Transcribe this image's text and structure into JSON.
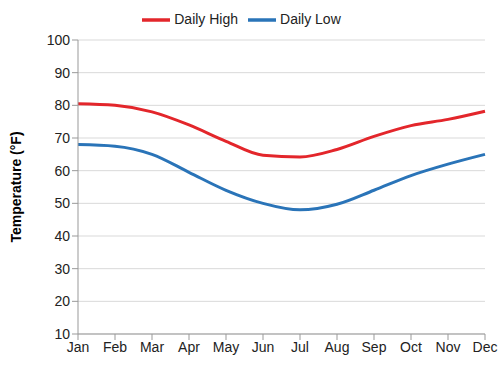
{
  "chart_data": {
    "type": "line",
    "y_label": "Temperature (°F)",
    "categories": [
      "Jan",
      "Feb",
      "Mar",
      "Apr",
      "May",
      "Jun",
      "Jul",
      "Aug",
      "Sep",
      "Oct",
      "Nov",
      "Dec"
    ],
    "series": [
      {
        "name": "Daily High",
        "color": "#e3262b",
        "values": [
          80.5,
          80,
          78,
          74,
          69,
          64.7,
          64.2,
          66.5,
          70.5,
          73.8,
          75.7,
          78.2
        ]
      },
      {
        "name": "Daily Low",
        "color": "#2a74b8",
        "values": [
          68,
          67.5,
          65,
          59.5,
          54,
          50,
          48,
          49.7,
          54,
          58.5,
          62,
          65
        ]
      }
    ],
    "ylim": [
      10,
      100
    ],
    "yticks": [
      10,
      20,
      30,
      40,
      50,
      60,
      70,
      80,
      90,
      100
    ],
    "grid": true,
    "legend": "top"
  }
}
